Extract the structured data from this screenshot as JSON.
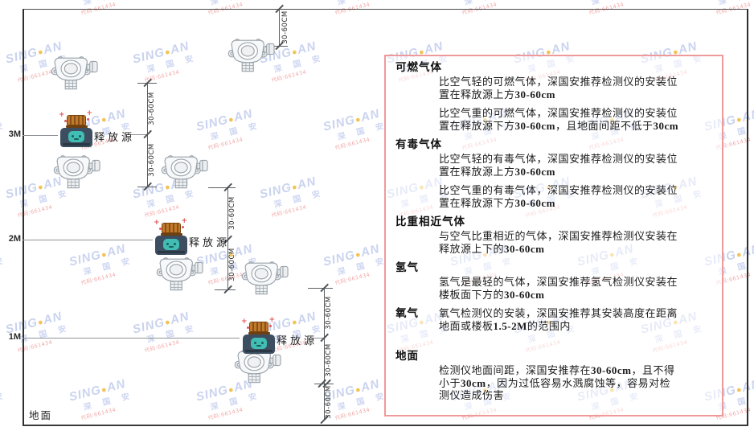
{
  "watermark": {
    "brand_prefix": "SING",
    "brand_dot": "●",
    "brand_suffix": "AN",
    "company": "深 国 安",
    "code": "代码:661434",
    "color": "#bdc9ec",
    "dot_color": "#f0b62f",
    "code_color": "#ef9191"
  },
  "diagram": {
    "height_labels": [
      "3M",
      "2M",
      "1M"
    ],
    "ground_label": "地面",
    "source_label": "释放源",
    "dim_label": "30-60CM",
    "icons": {
      "detector": "gas-detector-icon",
      "source": "release-source-icon"
    }
  },
  "panel": {
    "border_color": "#ef9a9a",
    "sections": [
      {
        "heading": "可燃气体",
        "paras": [
          "比空气轻的可燃气体，深国安推荐检测仪的安装位置在释放源上方30-60cm",
          "比空气重的可燃气体，深国安推荐检测仪的安装位置在释放源下方30-60cm，且地面间距不低于30cm"
        ]
      },
      {
        "heading": "有毒气体",
        "paras": [
          "比空气轻的有毒气体，深国安推荐检测仪的安装位置在释放源上方30-60cm",
          "比空气重的有毒气体，深国安推荐检测仪的安装位置在释放源下方30-60cm"
        ]
      },
      {
        "heading": "比重相近气体",
        "paras": [
          "与空气比重相近的气体，深国安推荐检测仪安装在释放源上下的30-60cm"
        ]
      },
      {
        "heading": "氢气",
        "paras": [
          "氢气是最轻的气体，深国安推荐氢气检测仪安装在楼板面下方的30-60cm"
        ]
      },
      {
        "heading": "氧气",
        "inline": true,
        "paras": [
          "氧气检测仪的安装，深国安推荐其安装高度在距离地面或楼板1.5-2M的范围内"
        ]
      },
      {
        "heading": "地面",
        "paras": [
          "检测仪地面间距，深国安推荐在30-60cm，且不得小于30cm，因为过低容易水溅腐蚀等，容易对检测仪造成伤害"
        ]
      }
    ]
  }
}
